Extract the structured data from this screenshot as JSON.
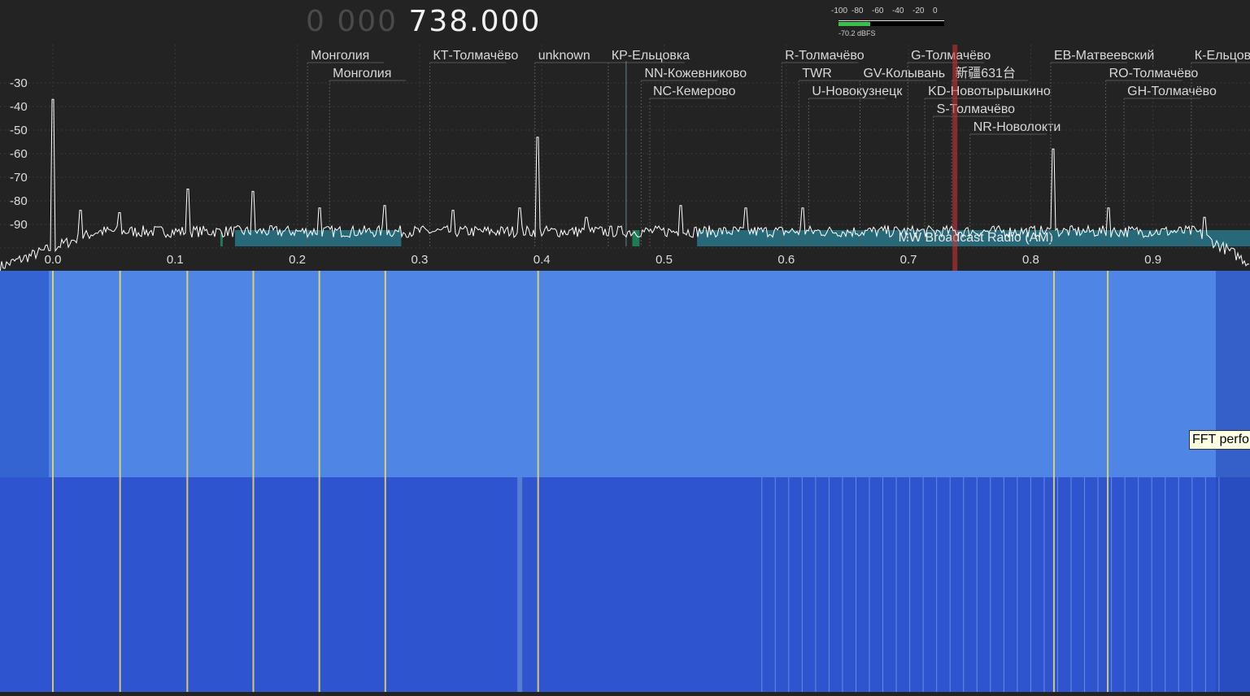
{
  "frequency": {
    "leading_digits": "0 000",
    "value": "738.000"
  },
  "signal_meter": {
    "scale": [
      "-100",
      "-80",
      "-60",
      "-40",
      "-20",
      "0"
    ],
    "level": "-70.2 dBFS",
    "level_dbfs": -70.2,
    "colors": {
      "fill": "#38c24a"
    }
  },
  "spectrum": {
    "y_axis": [
      "-30",
      "-40",
      "-50",
      "-60",
      "-70",
      "-80",
      "-90"
    ],
    "x_axis": [
      "0.0",
      "0.1",
      "0.2",
      "0.3",
      "0.4",
      "0.5",
      "0.6",
      "0.7",
      "0.8",
      "0.9"
    ],
    "band_label": "MW Broadcast Radio (AM)",
    "stations": [
      {
        "label": "Монголия",
        "mhz": 0.211
      },
      {
        "label": "Монголия",
        "mhz": 0.229
      },
      {
        "label": "КТ-Толмачёво",
        "mhz": 0.311
      },
      {
        "label": "unknown",
        "mhz": 0.397
      },
      {
        "label": "КР-Ельцовка",
        "mhz": 0.457
      },
      {
        "label": "NN-Кожевниково",
        "mhz": 0.484
      },
      {
        "label": "NC-Кемерово",
        "mhz": 0.491
      },
      {
        "label": "R-Толмачёво",
        "mhz": 0.599
      },
      {
        "label": "TWR",
        "mhz": 0.613
      },
      {
        "label": "U-Новокузнецк",
        "mhz": 0.621
      },
      {
        "label": "GV-Колывань",
        "mhz": 0.663
      },
      {
        "label": "G-Толмачёво",
        "mhz": 0.702
      },
      {
        "label": "新疆631台",
        "mhz": 0.738
      },
      {
        "label": "KD-Новотырышкино",
        "mhz": 0.716
      },
      {
        "label": "S-Толмачёво",
        "mhz": 0.723
      },
      {
        "label": "NR-Новолокти",
        "mhz": 0.753
      },
      {
        "label": "ЕВ-Матвеевский",
        "mhz": 0.819
      },
      {
        "label": "RO-Толмачёво",
        "mhz": 0.864
      },
      {
        "label": "GH-Толмачёво",
        "mhz": 0.879
      },
      {
        "label": "К-Ельцов",
        "mhz": 0.934
      }
    ],
    "colors": {
      "background": "#232323",
      "trace": "#ffffff",
      "band": "#276979",
      "marker": "#c83232"
    }
  },
  "waterfall": {
    "tooltip": "FFT perfo",
    "colors": {
      "upper": "#4f86e6",
      "lower": "#2e55cf",
      "signal": "#f0dc64"
    }
  }
}
